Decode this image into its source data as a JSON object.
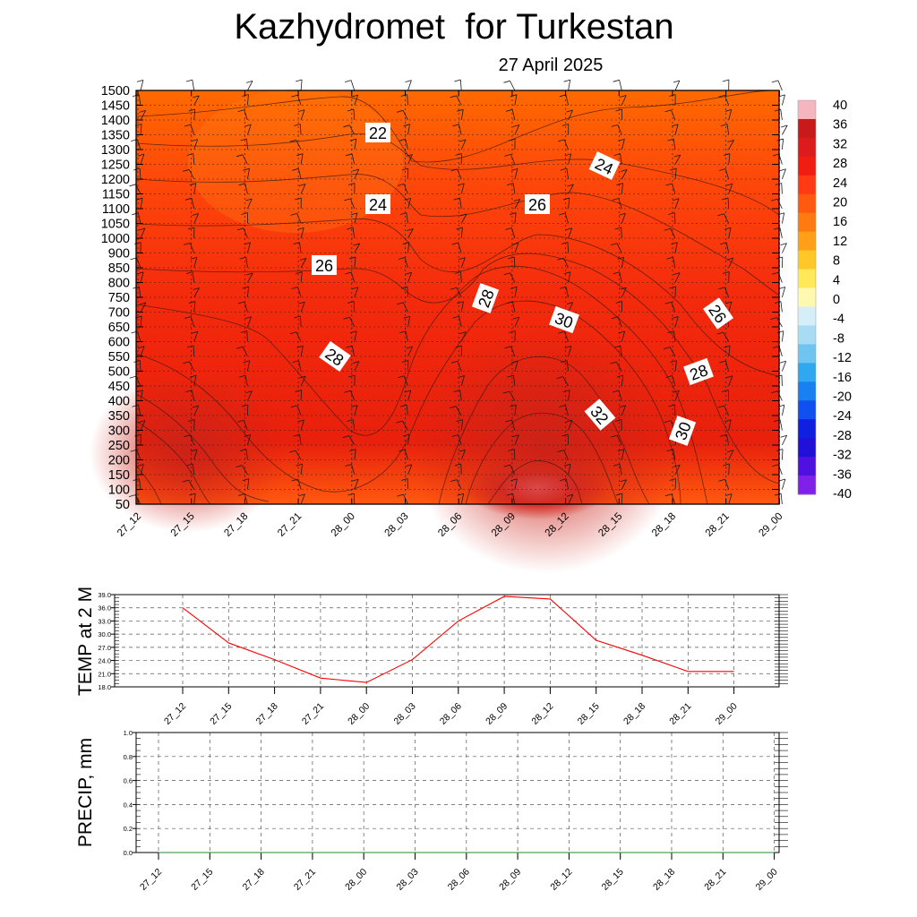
{
  "title": "Kazhydromet  for Turkestan",
  "subtitle": "27 April 2025",
  "chart_data": [
    {
      "type": "heatmap",
      "title": "Kazhydromet  for Turkestan",
      "subtitle": "27 April 2025",
      "x_ticks": [
        "27_12",
        "27_15",
        "27_18",
        "27_21",
        "28_00",
        "28_03",
        "28_06",
        "28_09",
        "28_12",
        "28_15",
        "28_18",
        "28_21",
        "29_00"
      ],
      "y_ticks": [
        50,
        100,
        150,
        200,
        250,
        300,
        350,
        400,
        450,
        500,
        550,
        600,
        650,
        700,
        750,
        800,
        850,
        900,
        1000,
        1050,
        1100,
        1150,
        1200,
        1250,
        1300,
        1350,
        1400,
        1450,
        1500
      ],
      "colorbar": {
        "labels": [
          "40",
          "36",
          "32",
          "28",
          "24",
          "20",
          "16",
          "12",
          "8",
          "4",
          "0",
          "-4",
          "-8",
          "-12",
          "-16",
          "-20",
          "-24",
          "-28",
          "-32",
          "-36",
          "-40"
        ],
        "colors": [
          "#f6b6c0",
          "#c81a1a",
          "#dc1c1c",
          "#f01e10",
          "#ff3a14",
          "#ff5a10",
          "#ff7a10",
          "#ffa018",
          "#ffc828",
          "#ffe85a",
          "#fff8b0",
          "#d6eef8",
          "#a8dcf4",
          "#70c4f0",
          "#30a8f0",
          "#1880f0",
          "#1050f0",
          "#1020e0",
          "#2010d8",
          "#5010e0",
          "#8020e8"
        ]
      },
      "contour_labels": [
        "22",
        "24",
        "24",
        "26",
        "26",
        "26",
        "28",
        "28",
        "28",
        "30",
        "30",
        "32",
        "26"
      ],
      "grid": true
    },
    {
      "type": "line",
      "ylabel": "TEMP at 2 M",
      "x": [
        "27_12",
        "27_15",
        "27_18",
        "27_21",
        "28_00",
        "28_03",
        "28_06",
        "28_09",
        "28_12",
        "28_15",
        "28_18",
        "28_21",
        "29_00"
      ],
      "y_ticks": [
        "39.0",
        "36.0",
        "33.0",
        "30.0",
        "27.0",
        "24.0",
        "21.0",
        "18.0"
      ],
      "ylim": [
        18.0,
        39.0
      ],
      "series": [
        {
          "values": [
            36.0,
            28.0,
            24.2,
            20.0,
            19.0,
            24.2,
            33.0,
            38.6,
            38.0,
            28.6,
            25.2,
            21.5,
            21.5
          ],
          "color": "#ff0000"
        }
      ],
      "grid": true
    },
    {
      "type": "line",
      "ylabel": "PRECIP, mm",
      "x": [
        "27_12",
        "27_15",
        "27_18",
        "27_21",
        "28_00",
        "28_03",
        "28_06",
        "28_09",
        "28_12",
        "28_15",
        "28_18",
        "28_21",
        "29_00"
      ],
      "y_ticks": [
        "1.0",
        "0.8",
        "0.6",
        "0.4",
        "0.2",
        "0.0"
      ],
      "ylim": [
        0.0,
        1.0
      ],
      "series": [
        {
          "values": [
            0,
            0,
            0,
            0,
            0,
            0,
            0,
            0,
            0,
            0,
            0,
            0,
            0
          ],
          "color": "#2a8a2a"
        }
      ],
      "grid": true
    }
  ]
}
